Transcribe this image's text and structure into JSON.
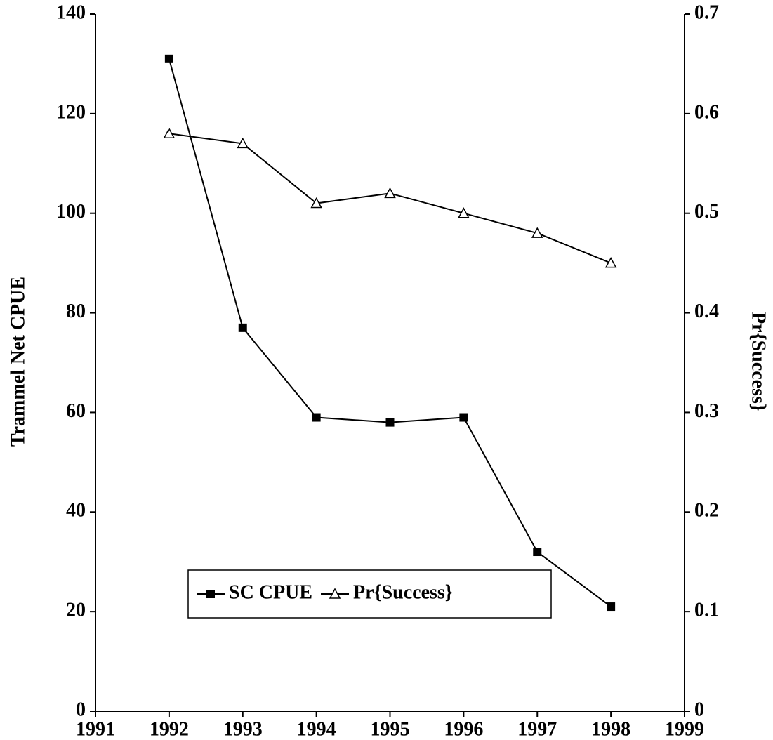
{
  "chart_data": {
    "type": "line",
    "x": [
      1992,
      1993,
      1994,
      1995,
      1996,
      1997,
      1998
    ],
    "xlim": [
      1991,
      1999
    ],
    "xticks": [
      1991,
      1992,
      1993,
      1994,
      1995,
      1996,
      1997,
      1998,
      1999
    ],
    "ylabel": "Trammel Net CPUE",
    "y2label": "Pr{Success}",
    "ylim": [
      0,
      140
    ],
    "yticks": [
      0,
      20,
      40,
      60,
      80,
      100,
      120,
      140
    ],
    "y2lim": [
      0,
      0.7
    ],
    "y2ticks": [
      0,
      0.1,
      0.2,
      0.3,
      0.4,
      0.5,
      0.6,
      0.7
    ],
    "grid": false,
    "legend": "lower center",
    "series": [
      {
        "name": "SC CPUE",
        "color": "#000000",
        "marker": "square",
        "values": [
          131,
          77,
          59,
          58,
          59,
          32,
          21
        ]
      },
      {
        "name": "Pr{Success}",
        "color": "#000000",
        "marker": "triangle",
        "axis": "y2",
        "values": [
          0.58,
          0.57,
          0.51,
          0.52,
          0.5,
          0.48,
          0.45
        ]
      }
    ]
  }
}
